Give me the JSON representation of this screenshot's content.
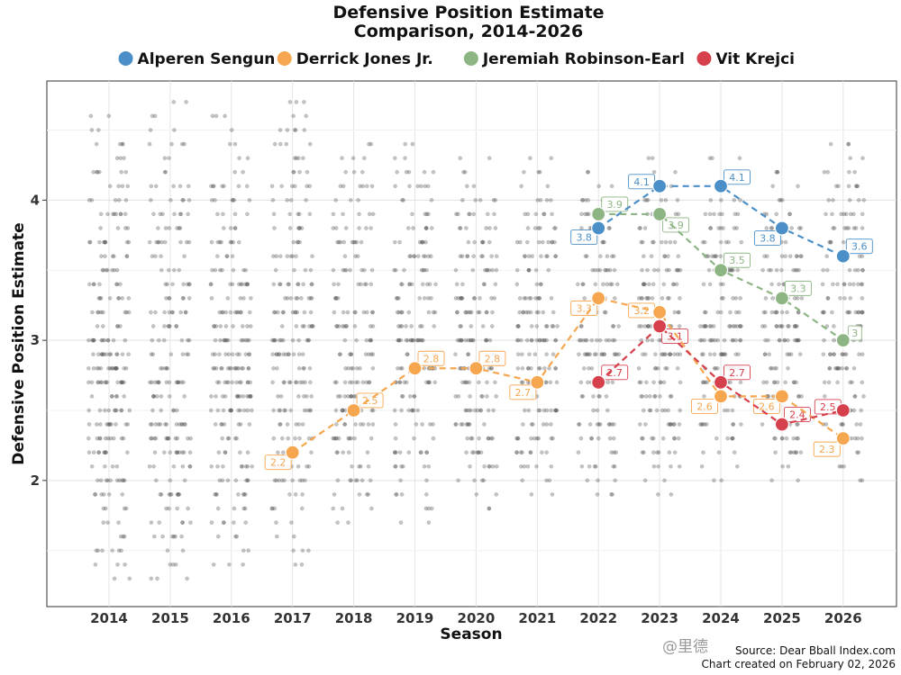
{
  "chart_data": {
    "type": "scatter",
    "title_lines": [
      "Defensive Position Estimate",
      "Comparison, 2014-2026"
    ],
    "xlabel": "Season",
    "ylabel": "Defensive Position Estimate",
    "categories": [
      "2014",
      "2015",
      "2016",
      "2017",
      "2018",
      "2019",
      "2020",
      "2021",
      "2022",
      "2023",
      "2024",
      "2025",
      "2026"
    ],
    "ylim": [
      1.1,
      4.85
    ],
    "yticks": [
      2,
      3,
      4
    ],
    "grid": true,
    "legend_position": "top",
    "series": [
      {
        "name": "Alperen Sengun",
        "color": "#4a8fc7",
        "points": [
          {
            "x": "2022",
            "y": 3.8
          },
          {
            "x": "2023",
            "y": 4.1
          },
          {
            "x": "2024",
            "y": 4.1
          },
          {
            "x": "2025",
            "y": 3.8
          },
          {
            "x": "2026",
            "y": 3.6
          }
        ],
        "labels": [
          "3.8",
          "4.1",
          "4.1",
          "3.8",
          "3.6"
        ]
      },
      {
        "name": "Derrick Jones Jr.",
        "color": "#f5a64f",
        "points": [
          {
            "x": "2017",
            "y": 2.2
          },
          {
            "x": "2018",
            "y": 2.5
          },
          {
            "x": "2019",
            "y": 2.8
          },
          {
            "x": "2020",
            "y": 2.8
          },
          {
            "x": "2021",
            "y": 2.7
          },
          {
            "x": "2022",
            "y": 3.3
          },
          {
            "x": "2023",
            "y": 3.2
          },
          {
            "x": "2024",
            "y": 2.6
          },
          {
            "x": "2025",
            "y": 2.6
          },
          {
            "x": "2026",
            "y": 2.3
          }
        ],
        "labels": [
          "2.2",
          "2.5",
          "2.8",
          "2.8",
          "2.7",
          "3.3",
          "3.2",
          "2.6",
          "2.6",
          "2.3"
        ]
      },
      {
        "name": "Jeremiah Robinson-Earl",
        "color": "#8db583",
        "points": [
          {
            "x": "2022",
            "y": 3.9
          },
          {
            "x": "2023",
            "y": 3.9
          },
          {
            "x": "2024",
            "y": 3.5
          },
          {
            "x": "2025",
            "y": 3.3
          },
          {
            "x": "2026",
            "y": 3.0
          }
        ],
        "labels": [
          "3.9",
          "3.9",
          "3.5",
          "3.3",
          "3"
        ]
      },
      {
        "name": "Vit Krejci",
        "color": "#d63f4c",
        "points": [
          {
            "x": "2022",
            "y": 2.7
          },
          {
            "x": "2023",
            "y": 3.1
          },
          {
            "x": "2024",
            "y": 2.7
          },
          {
            "x": "2025",
            "y": 2.4
          },
          {
            "x": "2026",
            "y": 2.5
          }
        ],
        "labels": [
          "2.7",
          "3.1",
          "2.7",
          "2.4",
          "2.5"
        ]
      }
    ],
    "background_points": {
      "description_of_distribution": "league-wide player estimates per season",
      "seasons": {
        "2014": {
          "min": 1.3,
          "max": 4.6
        },
        "2015": {
          "min": 1.3,
          "max": 4.7
        },
        "2016": {
          "min": 1.4,
          "max": 4.6
        },
        "2017": {
          "min": 1.4,
          "max": 4.7
        },
        "2018": {
          "min": 1.7,
          "max": 4.4
        },
        "2019": {
          "min": 1.7,
          "max": 4.4
        },
        "2020": {
          "min": 1.8,
          "max": 4.3
        },
        "2021": {
          "min": 1.9,
          "max": 4.3
        },
        "2022": {
          "min": 1.9,
          "max": 4.2
        },
        "2023": {
          "min": 1.9,
          "max": 4.3
        },
        "2024": {
          "min": 2.0,
          "max": 4.3
        },
        "2025": {
          "min": 2.0,
          "max": 4.2
        },
        "2026": {
          "min": 2.0,
          "max": 4.4
        }
      }
    },
    "source_lines": [
      "Source: Dear Bball Index.com",
      "Chart created on February 02, 2026"
    ]
  },
  "watermark": "@里德"
}
